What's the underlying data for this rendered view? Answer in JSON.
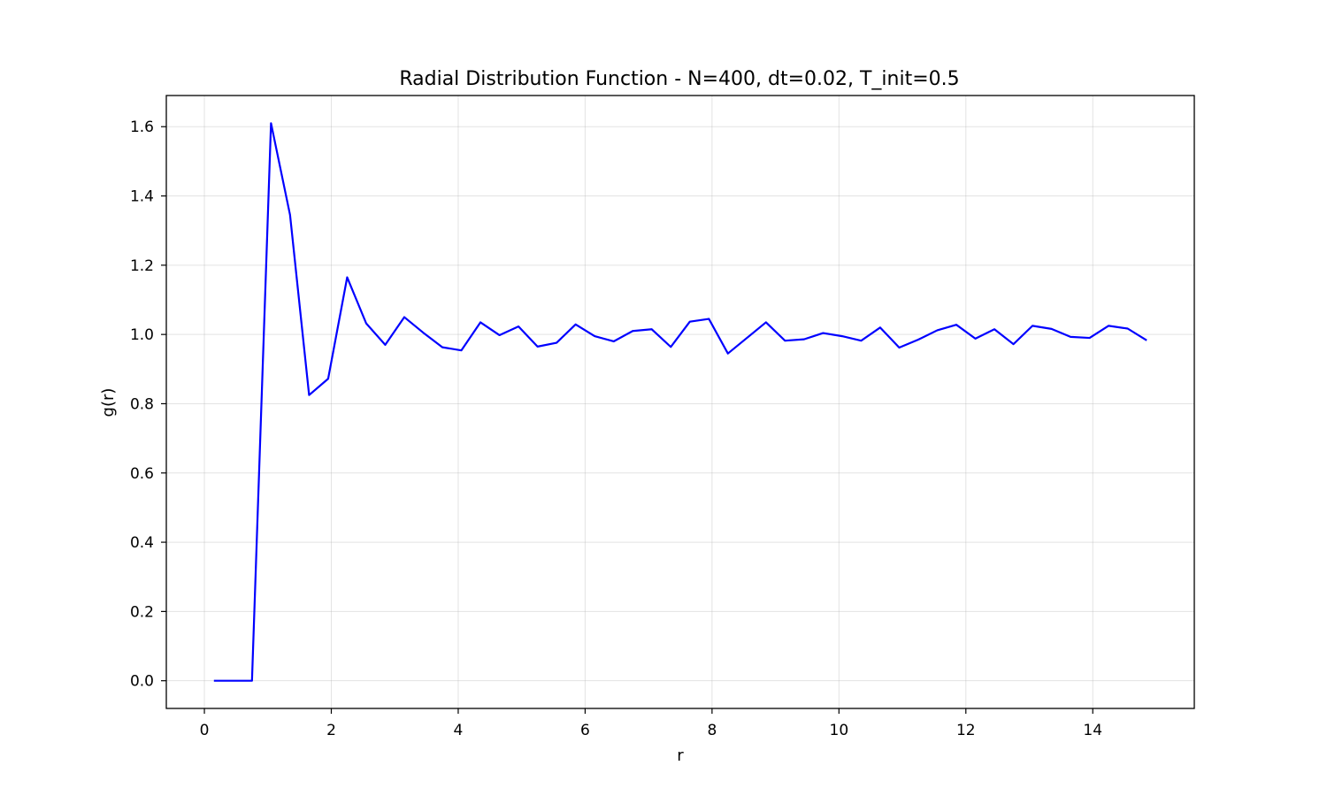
{
  "chart_data": {
    "type": "line",
    "title": "Radial Distribution Function - N=400, dt=0.02, T_init=0.5",
    "xlabel": "r",
    "ylabel": "g(r)",
    "xlim": [
      -0.6,
      15.6
    ],
    "ylim": [
      -0.08,
      1.69
    ],
    "xticks": [
      0,
      2,
      4,
      6,
      8,
      10,
      12,
      14
    ],
    "yticks": [
      0.0,
      0.2,
      0.4,
      0.6,
      0.8,
      1.0,
      1.2,
      1.4,
      1.6
    ],
    "xtick_labels": [
      "0",
      "2",
      "4",
      "6",
      "8",
      "10",
      "12",
      "14"
    ],
    "ytick_labels": [
      "0.0",
      "0.2",
      "0.4",
      "0.6",
      "0.8",
      "1.0",
      "1.2",
      "1.4",
      "1.6"
    ],
    "grid": true,
    "line_color": "#0000ff",
    "series": [
      {
        "x": [
          0.15,
          0.45,
          0.75,
          1.05,
          1.35,
          1.65,
          1.95,
          2.25,
          2.55,
          2.85,
          3.15,
          3.45,
          3.75,
          4.05,
          4.35,
          4.65,
          4.95,
          5.25,
          5.55,
          5.85,
          6.15,
          6.45,
          6.75,
          7.05,
          7.35,
          7.65,
          7.95,
          8.25,
          8.55,
          8.85,
          9.15,
          9.45,
          9.75,
          10.05,
          10.35,
          10.65,
          10.95,
          11.25,
          11.55,
          11.85,
          12.15,
          12.45,
          12.75,
          13.05,
          13.35,
          13.65,
          13.95,
          14.25,
          14.55,
          14.85
        ],
        "y": [
          0.0,
          0.0,
          0.0,
          1.61,
          1.345,
          0.825,
          0.872,
          1.165,
          1.032,
          0.97,
          1.05,
          1.005,
          0.963,
          0.954,
          1.035,
          0.998,
          1.023,
          0.965,
          0.976,
          1.029,
          0.995,
          0.98,
          1.01,
          1.015,
          0.964,
          1.037,
          1.045,
          0.945,
          0.99,
          1.035,
          0.982,
          0.986,
          1.004,
          0.995,
          0.982,
          1.02,
          0.962,
          0.985,
          1.012,
          1.028,
          0.988,
          1.015,
          0.972,
          1.025,
          1.016,
          0.993,
          0.99,
          1.025,
          1.017,
          0.983
        ]
      }
    ]
  }
}
